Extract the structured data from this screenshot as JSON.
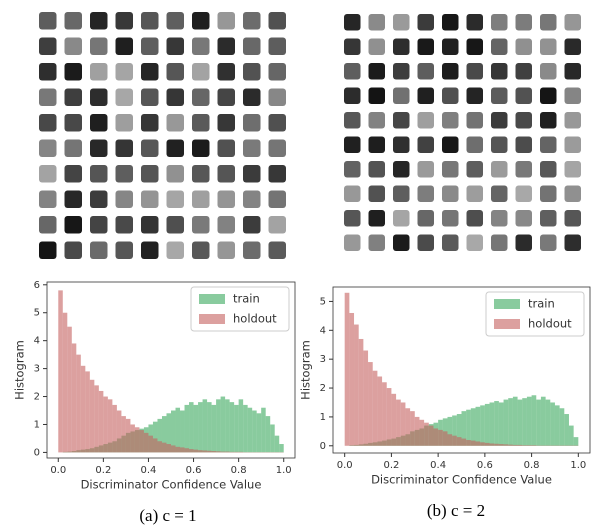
{
  "chart_data": [
    {
      "type": "histogram",
      "caption": "(a) c = 1",
      "x_label": "Discriminator Confidence Value",
      "y_label": "Histogram",
      "bins": [
        0,
        0.02,
        0.04,
        0.06,
        0.08,
        0.1,
        0.12,
        0.14,
        0.16,
        0.18,
        0.2,
        0.22,
        0.24,
        0.26,
        0.28,
        0.3,
        0.32,
        0.34,
        0.36,
        0.38,
        0.4,
        0.42,
        0.44,
        0.46,
        0.48,
        0.5,
        0.52,
        0.54,
        0.56,
        0.58,
        0.6,
        0.62,
        0.64,
        0.66,
        0.68,
        0.7,
        0.72,
        0.74,
        0.76,
        0.78,
        0.8,
        0.82,
        0.84,
        0.86,
        0.88,
        0.9,
        0.92,
        0.94,
        0.96,
        0.98,
        1
      ],
      "series": [
        {
          "name": "train",
          "color": "#3aa85e",
          "values": [
            0,
            0.02,
            0.03,
            0.05,
            0.08,
            0.1,
            0.12,
            0.15,
            0.2,
            0.25,
            0.3,
            0.35,
            0.4,
            0.5,
            0.6,
            0.7,
            0.75,
            0.8,
            0.85,
            0.9,
            1.0,
            1.1,
            1.2,
            1.3,
            1.4,
            1.5,
            1.6,
            1.5,
            1.7,
            1.8,
            1.7,
            1.8,
            1.9,
            1.8,
            1.7,
            1.9,
            2.0,
            1.9,
            1.8,
            1.7,
            1.9,
            1.7,
            1.6,
            1.5,
            1.4,
            1.6,
            1.3,
            1.0,
            0.6,
            0.3
          ]
        },
        {
          "name": "holdout",
          "color": "#c4605f",
          "values": [
            5.8,
            5.0,
            4.5,
            3.9,
            3.5,
            3.1,
            2.9,
            2.6,
            2.4,
            2.2,
            2.0,
            1.9,
            1.7,
            1.5,
            1.3,
            1.2,
            1.0,
            0.9,
            0.8,
            0.7,
            0.6,
            0.5,
            0.4,
            0.35,
            0.3,
            0.25,
            0.2,
            0.18,
            0.15,
            0.12,
            0.1,
            0.08,
            0.07,
            0.06,
            0.05,
            0.04,
            0.03,
            0.03,
            0.02,
            0.02,
            0.02,
            0.01,
            0.01,
            0.01,
            0.01,
            0.01,
            0.01,
            0.01,
            0.01,
            0.01
          ]
        }
      ],
      "xlim": [
        -0.05,
        1.05
      ],
      "xticks": [
        {
          "value": 0,
          "label": "0.0"
        },
        {
          "value": 0.2,
          "label": "0.2"
        },
        {
          "value": 0.4,
          "label": "0.4"
        },
        {
          "value": 0.6,
          "label": "0.6"
        },
        {
          "value": 0.8,
          "label": "0.8"
        },
        {
          "value": 1,
          "label": "1.0"
        }
      ],
      "ylim": [
        -0.2,
        6.1
      ],
      "yticks": [
        0,
        1,
        2,
        3,
        4,
        5,
        6
      ],
      "legend": "upper right"
    },
    {
      "type": "histogram",
      "caption": "(b) c = 2",
      "x_label": "Discriminator Confidence Value",
      "y_label": "Histogram",
      "bins": [
        0,
        0.02,
        0.04,
        0.06,
        0.08,
        0.1,
        0.12,
        0.14,
        0.16,
        0.18,
        0.2,
        0.22,
        0.24,
        0.26,
        0.28,
        0.3,
        0.32,
        0.34,
        0.36,
        0.38,
        0.4,
        0.42,
        0.44,
        0.46,
        0.48,
        0.5,
        0.52,
        0.54,
        0.56,
        0.58,
        0.6,
        0.62,
        0.64,
        0.66,
        0.68,
        0.7,
        0.72,
        0.74,
        0.76,
        0.78,
        0.8,
        0.82,
        0.84,
        0.86,
        0.88,
        0.9,
        0.92,
        0.94,
        0.96,
        0.98,
        1
      ],
      "series": [
        {
          "name": "train",
          "color": "#3aa85e",
          "values": [
            0,
            0.02,
            0.03,
            0.05,
            0.07,
            0.1,
            0.12,
            0.15,
            0.18,
            0.22,
            0.25,
            0.3,
            0.35,
            0.4,
            0.5,
            0.55,
            0.6,
            0.7,
            0.75,
            0.8,
            0.9,
            0.95,
            1.0,
            1.05,
            1.1,
            1.2,
            1.25,
            1.3,
            1.35,
            1.4,
            1.45,
            1.5,
            1.55,
            1.5,
            1.6,
            1.65,
            1.7,
            1.6,
            1.65,
            1.7,
            1.75,
            1.6,
            1.7,
            1.6,
            1.5,
            1.4,
            1.3,
            1.1,
            0.7,
            0.3
          ]
        },
        {
          "name": "holdout",
          "color": "#c4605f",
          "values": [
            5.3,
            4.6,
            4.2,
            3.7,
            3.3,
            2.9,
            2.6,
            2.4,
            2.2,
            2.0,
            1.8,
            1.6,
            1.5,
            1.3,
            1.2,
            1.0,
            0.9,
            0.8,
            0.7,
            0.6,
            0.55,
            0.5,
            0.4,
            0.35,
            0.3,
            0.25,
            0.2,
            0.18,
            0.15,
            0.12,
            0.1,
            0.08,
            0.07,
            0.06,
            0.05,
            0.04,
            0.03,
            0.03,
            0.02,
            0.02,
            0.02,
            0.01,
            0.01,
            0.01,
            0.01,
            0.01,
            0.01,
            0.01,
            0.01,
            0.01
          ]
        }
      ],
      "xlim": [
        -0.05,
        1.05
      ],
      "xticks": [
        {
          "value": 0,
          "label": "0.0"
        },
        {
          "value": 0.2,
          "label": "0.2"
        },
        {
          "value": 0.4,
          "label": "0.4"
        },
        {
          "value": 0.6,
          "label": "0.6"
        },
        {
          "value": 0.8,
          "label": "0.8"
        },
        {
          "value": 1,
          "label": "1.0"
        }
      ],
      "ylim": [
        -0.25,
        5.5
      ],
      "yticks": [
        0,
        1,
        2,
        3,
        4,
        5
      ],
      "legend": "upper right"
    }
  ]
}
